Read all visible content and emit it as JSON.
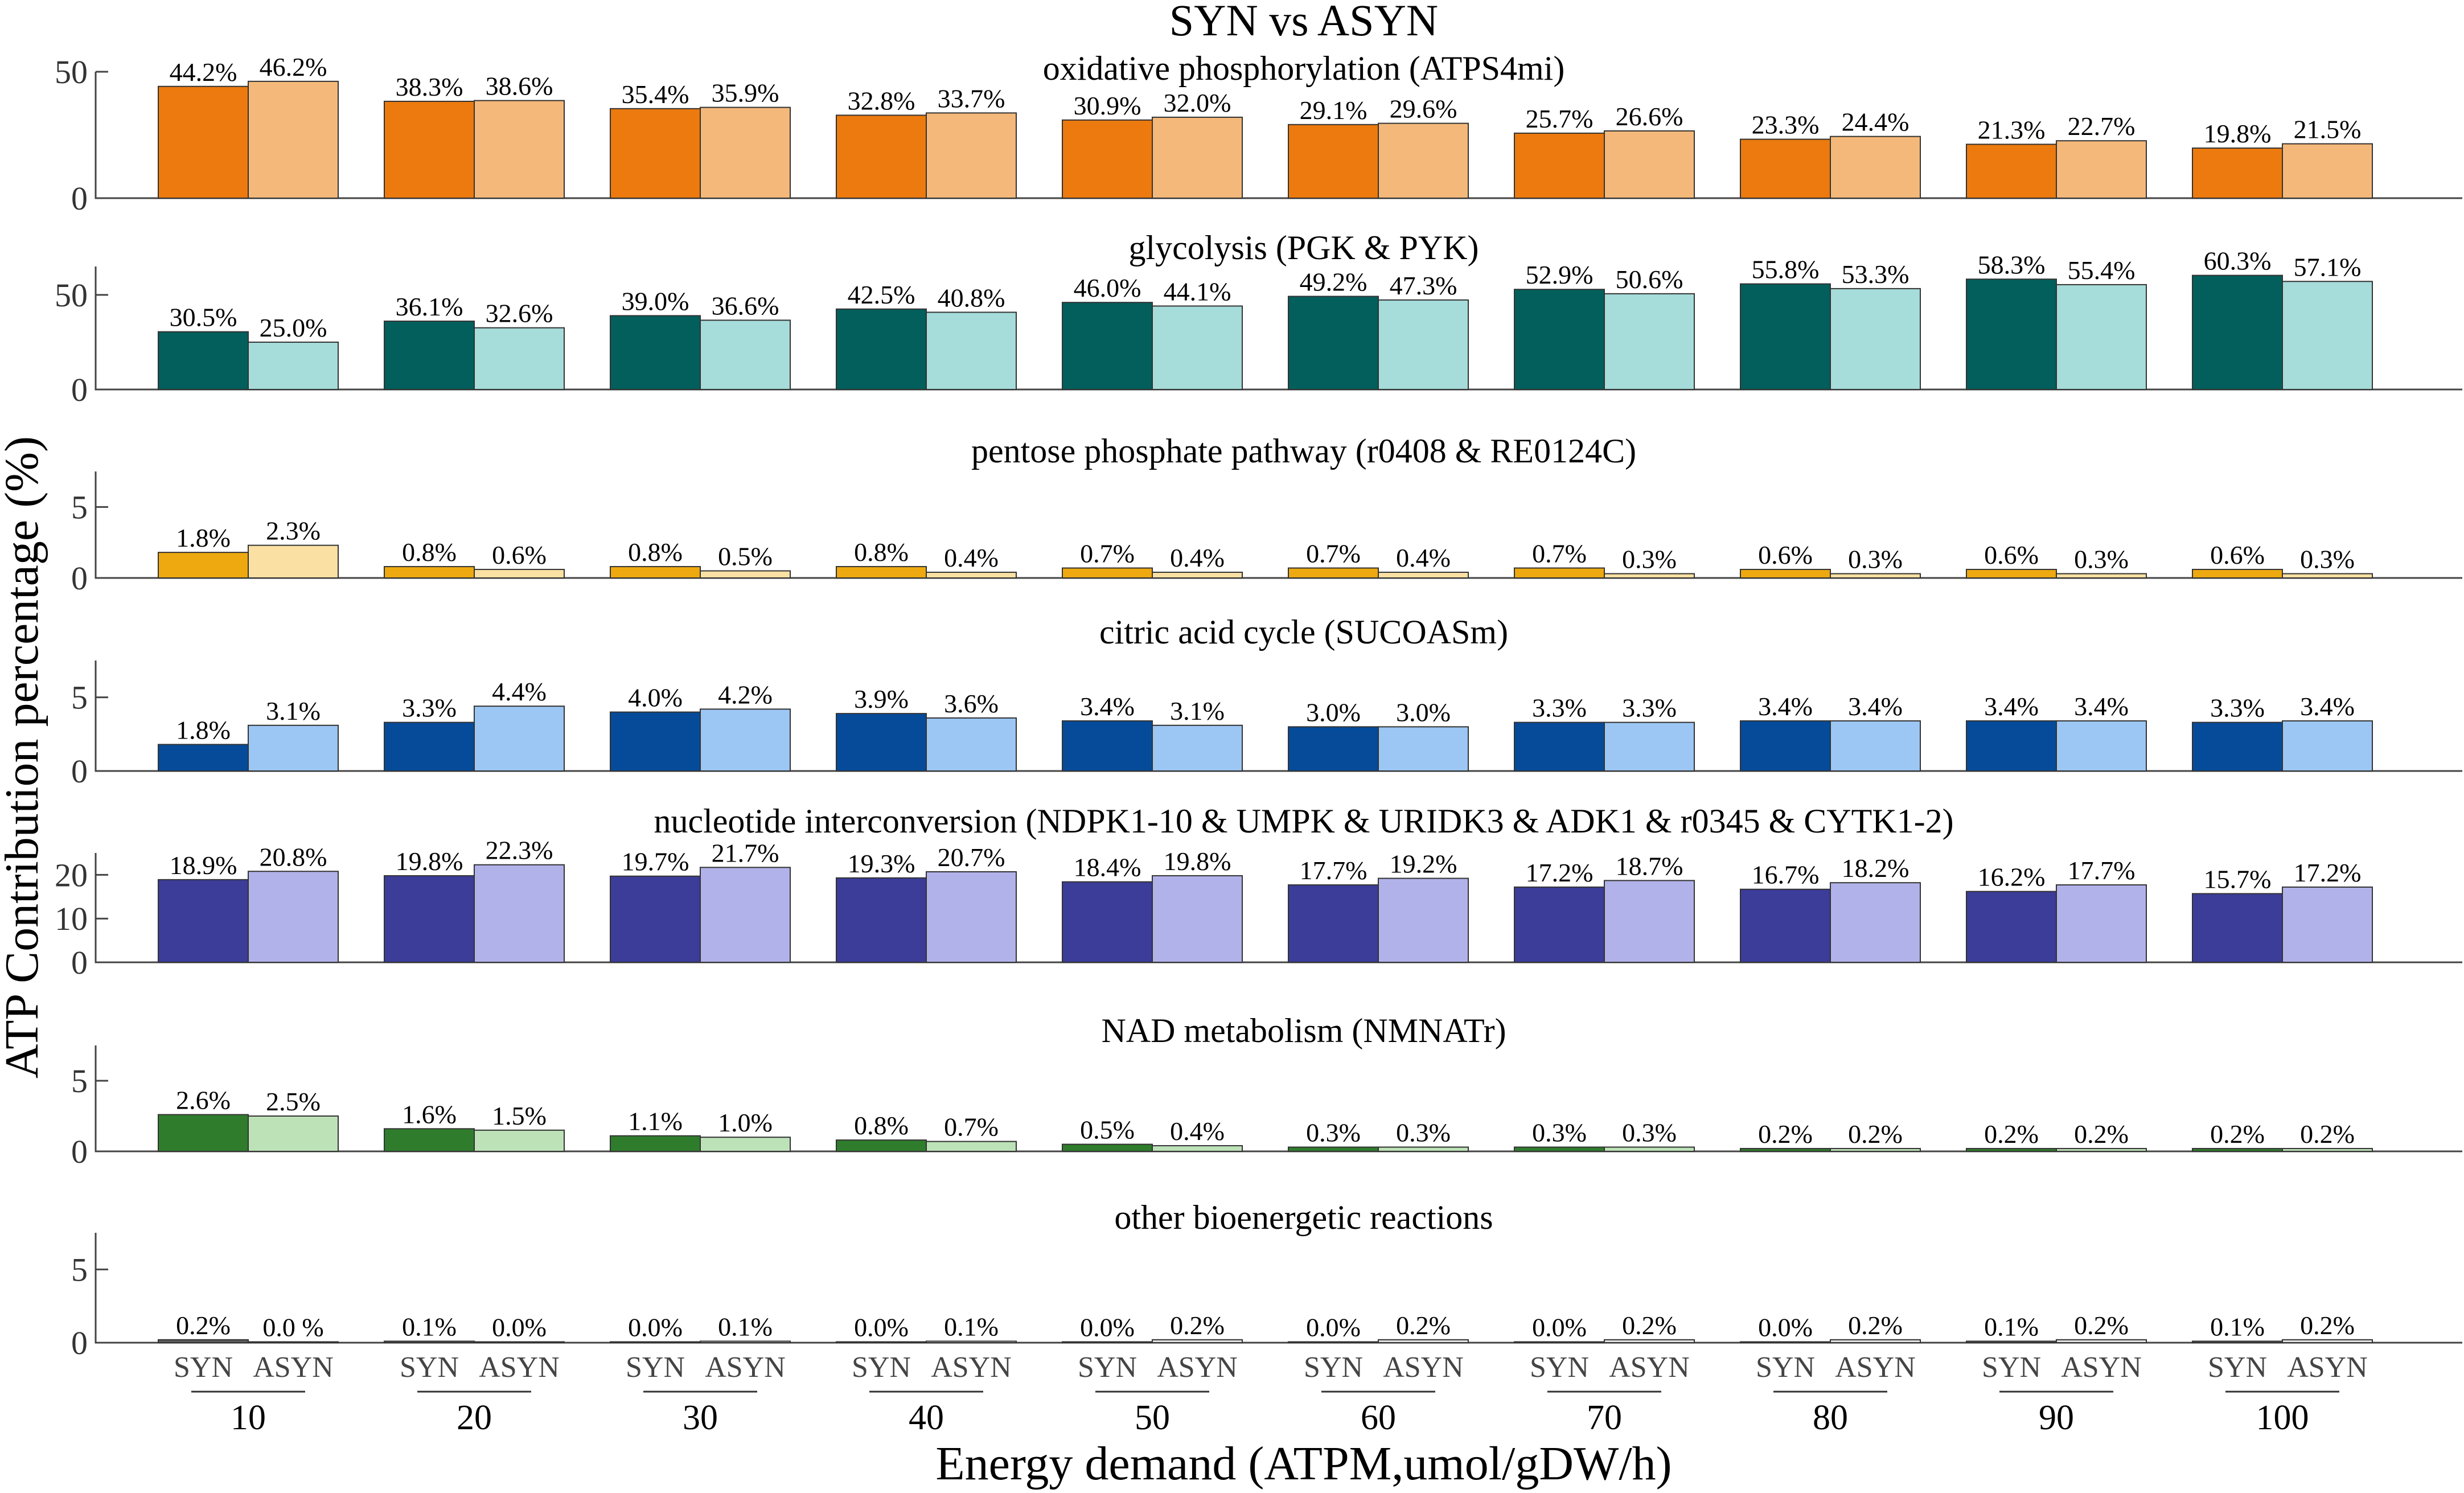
{
  "chart_data": {
    "type": "bar",
    "title": "SYN vs ASYN",
    "xlabel": "Energy demand (ATPM,umol/gDW/h)",
    "ylabel": "ATP Contribution percentage (%)",
    "categories": [
      "10",
      "20",
      "30",
      "40",
      "50",
      "60",
      "70",
      "80",
      "90",
      "100"
    ],
    "subgroups": [
      "SYN",
      "ASYN"
    ],
    "panels": [
      {
        "title": "oxidative phosphorylation (ATPS4mi)",
        "ylim": [
          0,
          50
        ],
        "yticks": [
          0,
          50
        ],
        "colors": {
          "SYN": "#ec7a0e",
          "ASYN": "#f4b97a"
        },
        "series": [
          {
            "name": "SYN",
            "values": [
              44.2,
              38.3,
              35.4,
              32.8,
              30.9,
              29.1,
              25.7,
              23.3,
              21.3,
              19.8
            ]
          },
          {
            "name": "ASYN",
            "values": [
              46.2,
              38.6,
              35.9,
              33.7,
              32.0,
              29.6,
              26.6,
              24.4,
              22.7,
              21.5
            ]
          }
        ],
        "labels": {
          "SYN": [
            "44.2%",
            "38.3%",
            "35.4%",
            "32.8%",
            "30.9%",
            "29.1%",
            "25.7%",
            "23.3%",
            "21.3%",
            "19.8%"
          ],
          "ASYN": [
            "46.2%",
            "38.6%",
            "35.9%",
            "33.7%",
            "32.0%",
            "29.6%",
            "26.6%",
            "24.4%",
            "22.7%",
            "21.5%"
          ]
        }
      },
      {
        "title": "glycolysis (PGK & PYK)",
        "ylim": [
          0,
          65
        ],
        "yticks": [
          0,
          50
        ],
        "colors": {
          "SYN": "#025f5c",
          "ASYN": "#a6dcda"
        },
        "series": [
          {
            "name": "SYN",
            "values": [
              30.5,
              36.1,
              39.0,
              42.5,
              46.0,
              49.2,
              52.9,
              55.8,
              58.3,
              60.3
            ]
          },
          {
            "name": "ASYN",
            "values": [
              25.0,
              32.6,
              36.6,
              40.8,
              44.1,
              47.3,
              50.6,
              53.3,
              55.4,
              57.1
            ]
          }
        ],
        "labels": {
          "SYN": [
            "30.5%",
            "36.1%",
            "39.0%",
            "42.5%",
            "46.0%",
            "49.2%",
            "52.9%",
            "55.8%",
            "58.3%",
            "60.3%"
          ],
          "ASYN": [
            "25.0%",
            "32.6%",
            "36.6%",
            "40.8%",
            "44.1%",
            "47.3%",
            "50.6%",
            "53.3%",
            "55.4%",
            "57.1%"
          ]
        }
      },
      {
        "title": "pentose phosphate pathway (r0408 & RE0124C)",
        "ylim": [
          0,
          7.5
        ],
        "yticks": [
          0,
          5
        ],
        "colors": {
          "SYN": "#eda90f",
          "ASYN": "#fae0a3"
        },
        "series": [
          {
            "name": "SYN",
            "values": [
              1.8,
              0.8,
              0.8,
              0.8,
              0.7,
              0.7,
              0.7,
              0.6,
              0.6,
              0.6
            ]
          },
          {
            "name": "ASYN",
            "values": [
              2.3,
              0.6,
              0.5,
              0.4,
              0.4,
              0.4,
              0.3,
              0.3,
              0.3,
              0.3
            ]
          }
        ],
        "labels": {
          "SYN": [
            "1.8%",
            "0.8%",
            "0.8%",
            "0.8%",
            "0.7%",
            "0.7%",
            "0.7%",
            "0.6%",
            "0.6%",
            "0.6%"
          ],
          "ASYN": [
            "2.3%",
            "0.6%",
            "0.5%",
            "0.4%",
            "0.4%",
            "0.4%",
            "0.3%",
            "0.3%",
            "0.3%",
            "0.3%"
          ]
        }
      },
      {
        "title": "citric acid cycle (SUCOASm)",
        "ylim": [
          0,
          7.5
        ],
        "yticks": [
          0,
          5
        ],
        "colors": {
          "SYN": "#054b9a",
          "ASYN": "#9cc7f4"
        },
        "series": [
          {
            "name": "SYN",
            "values": [
              1.8,
              3.3,
              4.0,
              3.9,
              3.4,
              3.0,
              3.3,
              3.4,
              3.4,
              3.3
            ]
          },
          {
            "name": "ASYN",
            "values": [
              3.1,
              4.4,
              4.2,
              3.6,
              3.1,
              3.0,
              3.3,
              3.4,
              3.4,
              3.4
            ]
          }
        ],
        "labels": {
          "SYN": [
            "1.8%",
            "3.3%",
            "4.0%",
            "3.9%",
            "3.4%",
            "3.0%",
            "3.3%",
            "3.4%",
            "3.4%",
            "3.3%"
          ],
          "ASYN": [
            "3.1%",
            "4.4%",
            "4.2%",
            "3.6%",
            "3.1%",
            "3.0%",
            "3.3%",
            "3.4%",
            "3.4%",
            "3.4%"
          ]
        }
      },
      {
        "title": "nucleotide interconversion (NDPK1-10 & UMPK & URIDK3 & ADK1 & r0345 & CYTK1-2)",
        "ylim": [
          0,
          25
        ],
        "yticks": [
          0,
          10,
          20
        ],
        "colors": {
          "SYN": "#3c3c99",
          "ASYN": "#b2b2ea"
        },
        "series": [
          {
            "name": "SYN",
            "values": [
              18.9,
              19.8,
              19.7,
              19.3,
              18.4,
              17.7,
              17.2,
              16.7,
              16.2,
              15.7
            ]
          },
          {
            "name": "ASYN",
            "values": [
              20.8,
              22.3,
              21.7,
              20.7,
              19.8,
              19.2,
              18.7,
              18.2,
              17.7,
              17.2
            ]
          }
        ],
        "labels": {
          "SYN": [
            "18.9%",
            "19.8%",
            "19.7%",
            "19.3%",
            "18.4%",
            "17.7%",
            "17.2%",
            "16.7%",
            "16.2%",
            "15.7%"
          ],
          "ASYN": [
            "20.8%",
            "22.3%",
            "21.7%",
            "20.7%",
            "19.8%",
            "19.2%",
            "18.7%",
            "18.2%",
            "17.7%",
            "17.2%"
          ]
        }
      },
      {
        "title": "NAD metabolism (NMNATr)",
        "ylim": [
          0,
          7.5
        ],
        "yticks": [
          0,
          5
        ],
        "colors": {
          "SYN": "#2f7d2c",
          "ASYN": "#bde2b8"
        },
        "series": [
          {
            "name": "SYN",
            "values": [
              2.6,
              1.6,
              1.1,
              0.8,
              0.5,
              0.3,
              0.3,
              0.2,
              0.2,
              0.2
            ]
          },
          {
            "name": "ASYN",
            "values": [
              2.5,
              1.5,
              1.0,
              0.7,
              0.4,
              0.3,
              0.3,
              0.2,
              0.2,
              0.2
            ]
          }
        ],
        "labels": {
          "SYN": [
            "2.6%",
            "1.6%",
            "1.1%",
            "0.8%",
            "0.5%",
            "0.3%",
            "0.3%",
            "0.2%",
            "0.2%",
            "0.2%"
          ],
          "ASYN": [
            "2.5%",
            "1.5%",
            "1.0%",
            "0.7%",
            "0.4%",
            "0.3%",
            "0.3%",
            "0.2%",
            "0.2%",
            "0.2%"
          ]
        }
      },
      {
        "title": "other bioenergetic reactions",
        "ylim": [
          0,
          7.5
        ],
        "yticks": [
          0,
          5
        ],
        "colors": {
          "SYN": "#5e5e5e",
          "ASYN": "#e4e4e4"
        },
        "series": [
          {
            "name": "SYN",
            "values": [
              0.2,
              0.1,
              0.0,
              0.0,
              0.0,
              0.0,
              0.0,
              0.0,
              0.1,
              0.1
            ]
          },
          {
            "name": "ASYN",
            "values": [
              0.0,
              0.0,
              0.1,
              0.1,
              0.2,
              0.2,
              0.2,
              0.2,
              0.2,
              0.2
            ]
          }
        ],
        "labels": {
          "SYN": [
            "0.2%",
            "0.1%",
            "0.0%",
            "0.0%",
            "0.0%",
            "0.0%",
            "0.0%",
            "0.0%",
            "0.1%",
            "0.1%"
          ],
          "ASYN": [
            "0.0 %",
            "0.0%",
            "0.1%",
            "0.1%",
            "0.2%",
            "0.2%",
            "0.2%",
            "0.2%",
            "0.2%",
            "0.2%"
          ]
        }
      }
    ]
  }
}
